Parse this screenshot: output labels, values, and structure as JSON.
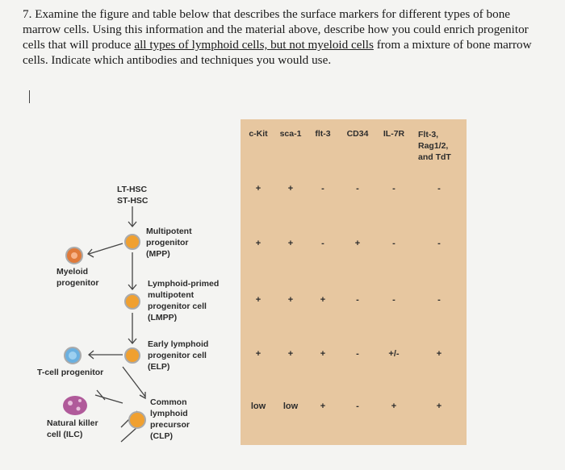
{
  "question": {
    "p1": "7. Examine the figure and table below that describes the surface markers for different types of bone marrow cells. Using this information and the material above, describe how you could enrich progenitor cells that will produce ",
    "underlined": "all types of lymphoid cells, but not myeloid cells",
    "p2": " from a mixture of bone marrow cells. Indicate which antibodies and techniques you would use."
  },
  "diagram": {
    "lt_hsc": "LT-HSC",
    "st_hsc": "ST-HSC",
    "mpp": [
      "Multipotent",
      "progenitor",
      "(MPP)"
    ],
    "myeloid": [
      "Myeloid",
      "progenitor"
    ],
    "lmpp": [
      "Lymphoid-primed",
      "multipotent",
      "progenitor cell",
      "(LMPP)"
    ],
    "elp": [
      "Early lymphoid",
      "progenitor cell",
      "(ELP)"
    ],
    "tcell": "T-cell progenitor",
    "clp": [
      "Common",
      "lymphoid",
      "precursor",
      "(CLP)"
    ],
    "nk": [
      "Natural killer",
      "cell (ILC)"
    ],
    "colors": {
      "myeloid": "#e07a3a",
      "mpp": "#f0a030",
      "tcell": "#6ab0e0",
      "nk": "#b05a9a"
    }
  },
  "table": {
    "headers": [
      "c-Kit",
      "sca-1",
      "flt-3",
      "CD34",
      "IL-7R",
      "Flt-3,",
      "Rag1/2,",
      "and TdT"
    ],
    "rows": [
      [
        "+",
        "+",
        "-",
        "-",
        "-",
        "-"
      ],
      [
        "+",
        "+",
        "-",
        "+",
        "-",
        "-"
      ],
      [
        "+",
        "+",
        "+",
        "-",
        "-",
        "-"
      ],
      [
        "+",
        "+",
        "+",
        "-",
        "+/-",
        "+"
      ],
      [
        "low",
        "low",
        "+",
        "-",
        "+",
        "+"
      ]
    ]
  }
}
